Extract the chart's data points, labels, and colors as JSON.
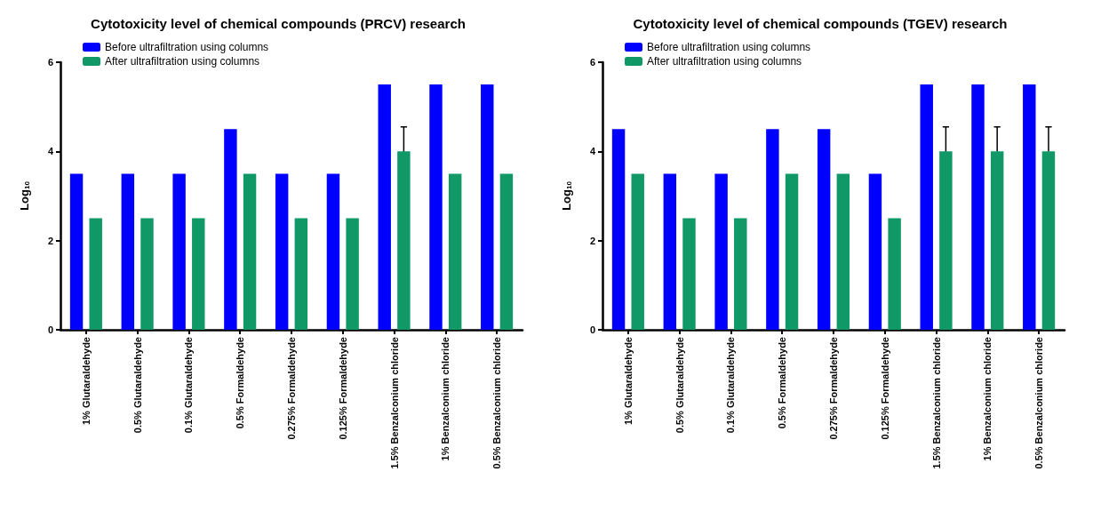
{
  "chart_data": [
    {
      "type": "bar",
      "title": "Cytotoxicity level of chemical compounds (PRCV) research",
      "ylabel": "Log$_{10}$",
      "categories": [
        "1% Glutaraldehyde",
        "0.5% Glutaraldehyde",
        "0.1% Glutaraldehyde",
        "0.5% Formaldehyde",
        "0.275% Formaldehyde",
        "0.125% Formaldehyde",
        "1.5% Benzalconium chloride",
        "1% Benzalconium chloride",
        "0.5% Benzalconium chloride"
      ],
      "series": [
        {
          "name": "Before ultrafiltration using columns",
          "color": "#0000ff",
          "values": [
            3.5,
            3.5,
            3.5,
            4.5,
            3.5,
            3.5,
            5.5,
            5.5,
            5.5
          ]
        },
        {
          "name": "After ultrafiltration using columns",
          "color": "#109966",
          "values": [
            2.5,
            2.5,
            2.5,
            3.5,
            2.5,
            2.5,
            4,
            3.5,
            3.5
          ],
          "errors": [
            null,
            null,
            null,
            null,
            null,
            null,
            [
              4,
              4.55
            ],
            null,
            null
          ]
        }
      ],
      "ylim": [
        0,
        6
      ],
      "yticks": [
        0,
        2,
        4,
        6
      ],
      "grid": false,
      "legend": "top left"
    },
    {
      "type": "bar",
      "title": "Cytotoxicity level of chemical compounds (TGEV) research",
      "ylabel": "Log$_{10}$",
      "categories": [
        "1% Glutaraldehyde",
        "0.5% Glutaraldehyde",
        "0.1% Glutaraldehyde",
        "0.5% Formaldehyde",
        "0.275% Formaldehyde",
        "0.125% Formaldehyde",
        "1.5% Benzalconium chloride",
        "1% Benzalconium chloride",
        "0.5% Benzalconium chloride"
      ],
      "series": [
        {
          "name": "Before ultrafiltration using columns",
          "color": "#0000ff",
          "values": [
            4.5,
            3.5,
            3.5,
            4.5,
            4.5,
            3.5,
            5.5,
            5.5,
            5.5
          ]
        },
        {
          "name": "After ultrafiltration using columns",
          "color": "#109966",
          "values": [
            3.5,
            2.5,
            2.5,
            3.5,
            3.5,
            2.5,
            4,
            4,
            4
          ],
          "errors": [
            null,
            null,
            null,
            null,
            null,
            null,
            [
              4,
              4.55
            ],
            [
              4,
              4.55
            ],
            [
              4,
              4.55
            ]
          ]
        }
      ],
      "ylim": [
        0,
        6
      ],
      "yticks": [
        0,
        2,
        4,
        6
      ],
      "grid": false,
      "legend": "top left"
    }
  ]
}
